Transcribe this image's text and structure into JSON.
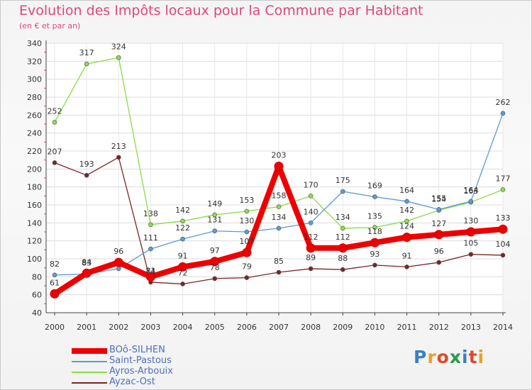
{
  "title": "Evolution des Impôts locaux pour la Commune par Habitant",
  "subtitle": "(en € et par an)",
  "logo": {
    "text": "Proxiti",
    "colors": [
      "#3b7fc4",
      "#e8a124",
      "#e04a2a",
      "#2a9a4a",
      "#3b7fc4",
      "#e04a2a",
      "#e8a124"
    ]
  },
  "chart_data": {
    "type": "line",
    "title": "Evolution des Impôts locaux pour la Commune par Habitant",
    "subtitle": "(en € et par an)",
    "xlabel": "",
    "ylabel": "",
    "x": [
      "2000",
      "2001",
      "2002",
      "2003",
      "2004",
      "2005",
      "2006",
      "2007",
      "2008",
      "2009",
      "2010",
      "2011",
      "2012",
      "2013",
      "2014"
    ],
    "ylim": [
      40,
      340
    ],
    "yticks": [
      "40",
      "60",
      "80",
      "100",
      "120",
      "140",
      "160",
      "180",
      "200",
      "220",
      "240",
      "260",
      "280",
      "300",
      "320",
      "340"
    ],
    "grid": true,
    "legend_position": "bottom-left",
    "series": [
      {
        "name": "BOô-SILHEN",
        "color": "#ee0000",
        "values": [
          61,
          84,
          96,
          80,
          91,
          97,
          107,
          203,
          112,
          112,
          118,
          124,
          127,
          130,
          133
        ],
        "labels": [
          "61",
          "84",
          "96",
          "",
          "91",
          "97",
          "107",
          "203",
          "112",
          "112",
          "118",
          "124",
          "127",
          "130",
          "133"
        ]
      },
      {
        "name": "Saint-Pastous",
        "color": "#5b9bd5",
        "values": [
          82,
          83,
          89,
          111,
          122,
          131,
          130,
          134,
          140,
          175,
          169,
          164,
          155,
          164,
          262
        ],
        "labels": [
          "82",
          "83",
          "",
          "111",
          "122",
          "131",
          "130",
          "134",
          "140",
          "175",
          "169",
          "164",
          "155",
          "164",
          "262"
        ]
      },
      {
        "name": "Ayros-Arbouix",
        "color": "#88dd44",
        "values": [
          252,
          317,
          324,
          138,
          142,
          149,
          153,
          158,
          170,
          134,
          135,
          142,
          154,
          163,
          177
        ],
        "labels": [
          "252",
          "317",
          "324",
          "138",
          "142",
          "149",
          "153",
          "158",
          "170",
          "134",
          "135",
          "142",
          "154",
          "163",
          "177"
        ]
      },
      {
        "name": "Ayzac-Ost",
        "color": "#7a2525",
        "values": [
          207,
          193,
          213,
          74,
          72,
          78,
          79,
          85,
          89,
          88,
          93,
          91,
          96,
          105,
          104
        ],
        "labels": [
          "207",
          "193",
          "213",
          "74",
          "72",
          "78",
          "79",
          "85",
          "89",
          "88",
          "93",
          "91",
          "96",
          "105",
          "104"
        ]
      }
    ],
    "extra_labels": [
      "81"
    ]
  }
}
